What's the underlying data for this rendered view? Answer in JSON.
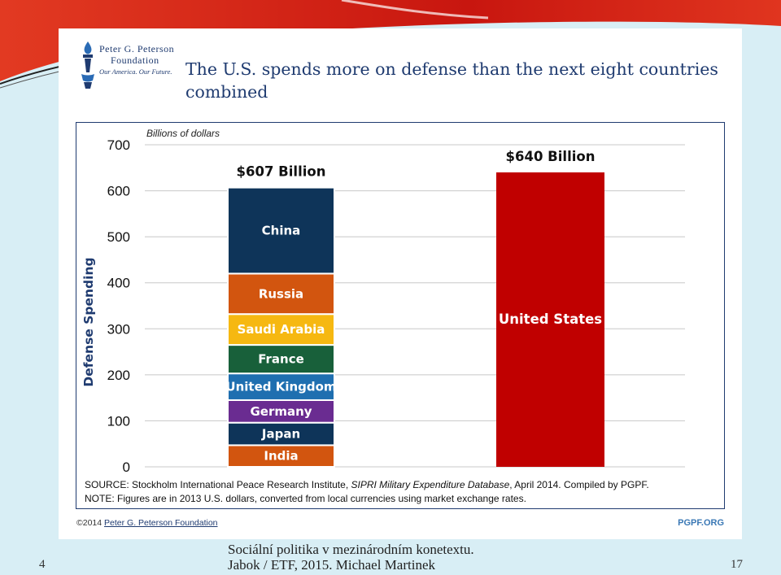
{
  "logo": {
    "line1": "Peter G. Peterson",
    "line2": "Foundation",
    "tagline": "Our America. Our Future."
  },
  "headline": "The U.S. spends more on defense than the next eight countries combined",
  "chart_data": {
    "type": "bar",
    "stacked": true,
    "title": "The U.S. spends more on defense than the next eight countries combined",
    "unit_label": "Billions of dollars",
    "ylabel": "Defense Spending",
    "xlabel": "",
    "ylim": [
      0,
      700
    ],
    "yticks": [
      0,
      100,
      200,
      300,
      400,
      500,
      600,
      700
    ],
    "grid": true,
    "bars": [
      {
        "name": "eight-countries",
        "total_label": "$607 Billion",
        "segments": [
          {
            "name": "India",
            "value": 47,
            "color": "#d2550f"
          },
          {
            "name": "Japan",
            "value": 49,
            "color": "#0e3459"
          },
          {
            "name": "Germany",
            "value": 49,
            "color": "#6a2c91"
          },
          {
            "name": "United Kingdom",
            "value": 58,
            "color": "#1f6fb0"
          },
          {
            "name": "France",
            "value": 62,
            "color": "#18603a"
          },
          {
            "name": "Saudi Arabia",
            "value": 67,
            "color": "#f6b811"
          },
          {
            "name": "Russia",
            "value": 88,
            "color": "#d2550f"
          },
          {
            "name": "China",
            "value": 187,
            "color": "#0e3459"
          }
        ]
      },
      {
        "name": "united-states",
        "total_label": "$640 Billion",
        "segments": [
          {
            "name": "United States",
            "value": 640,
            "color": "#c00000"
          }
        ]
      }
    ]
  },
  "source": {
    "line1_prefix": "SOURCE: Stockholm International Peace Research Institute, ",
    "line1_italic": "SIPRI Military Expenditure Database",
    "line1_suffix": ", April 2014. Compiled by PGPF.",
    "line2": "NOTE: Figures are in 2013 U.S. dollars, converted from local currencies using market exchange rates."
  },
  "copyright": {
    "prefix": "©2014 ",
    "org": "Peter G. Peterson Foundation"
  },
  "site_url": "PGPF.ORG",
  "footer": {
    "left_number": "4",
    "caption_line1": "Sociální politika v mezinárodním konetextu.",
    "caption_line2": "Jabok / ETF, 2015. Michael Martinek",
    "slide_number": "17"
  },
  "colors": {
    "navy": "#1f3b70",
    "accent_red": "#c00000",
    "banner_red": "#d6231e"
  }
}
